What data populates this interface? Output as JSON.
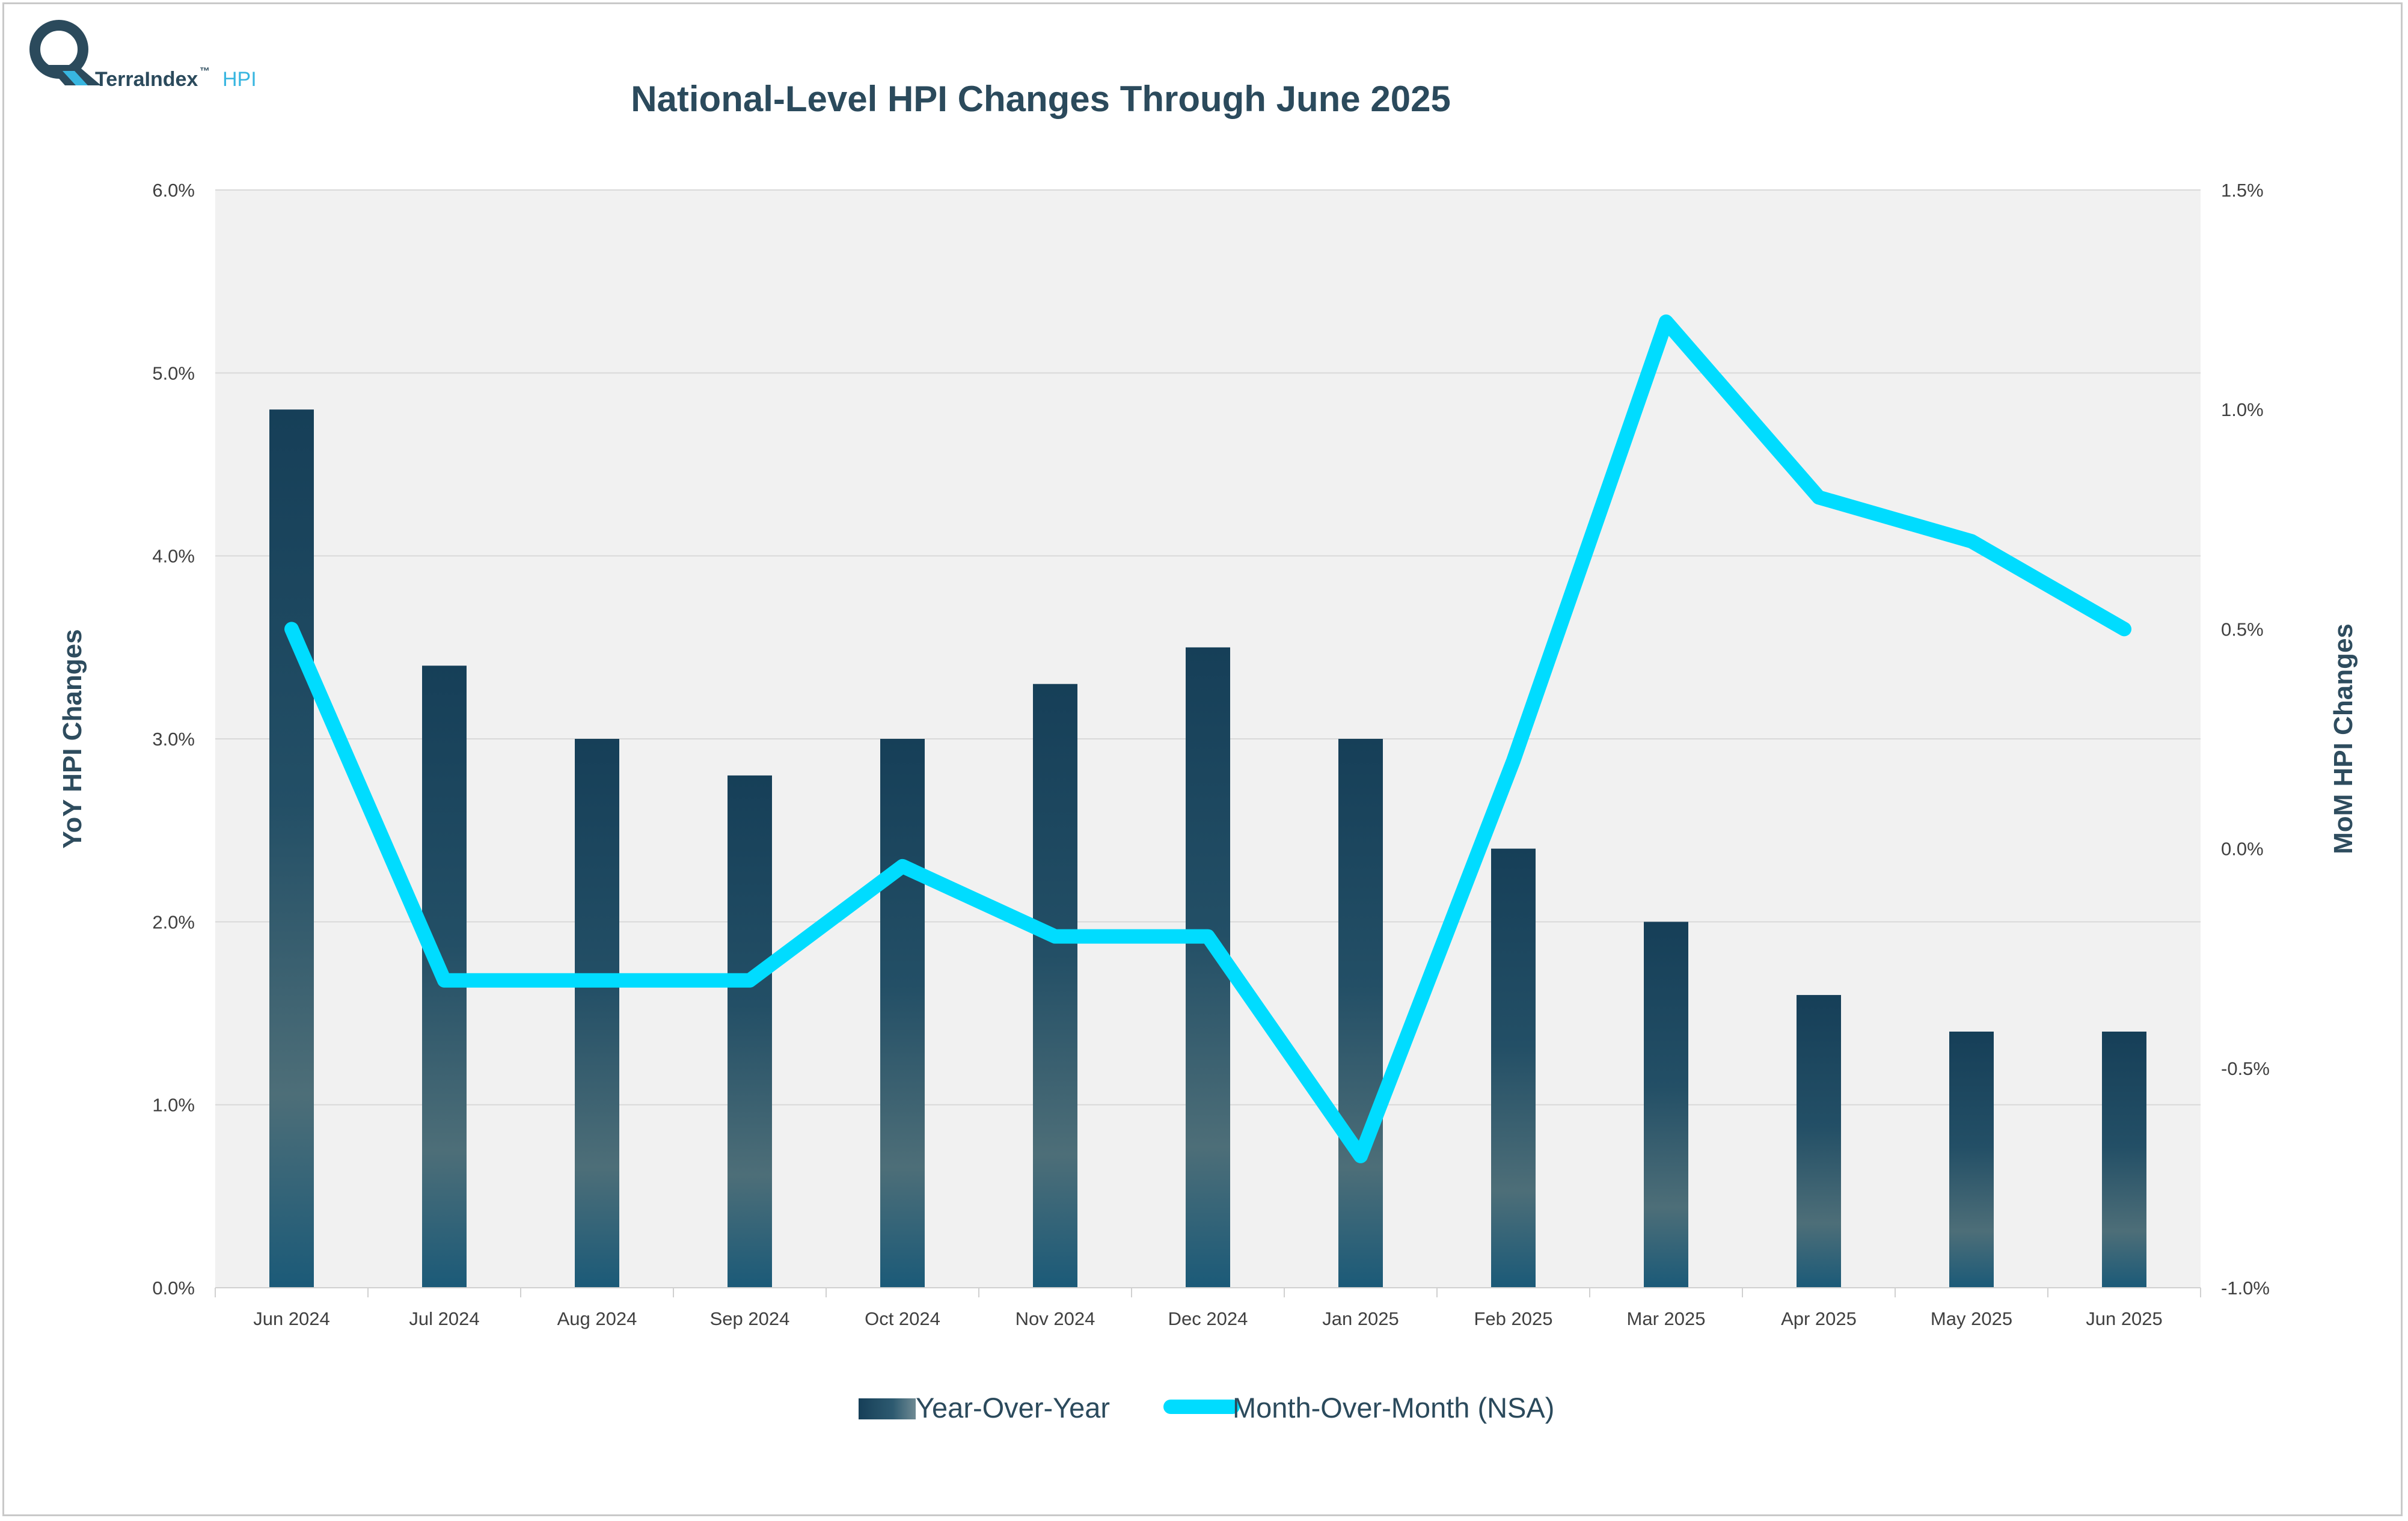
{
  "brand": {
    "name": "TerraIndex",
    "trademark": "™",
    "suffix": "HPI",
    "colors": {
      "dark": "#2b4a5c",
      "accent": "#38b6e0"
    }
  },
  "chart_data": {
    "type": "bar+line",
    "title": "National-Level HPI Changes Through June 2025",
    "categories": [
      "Jun 2024",
      "Jul 2024",
      "Aug 2024",
      "Sep 2024",
      "Oct 2024",
      "Nov 2024",
      "Dec 2024",
      "Jan 2025",
      "Feb 2025",
      "Mar 2025",
      "Apr 2025",
      "May 2025",
      "Jun 2025"
    ],
    "series": [
      {
        "name": "Year-Over-Year",
        "type": "bar",
        "axis": "left",
        "values": [
          4.8,
          3.4,
          3.0,
          2.8,
          3.0,
          3.3,
          3.5,
          3.0,
          2.4,
          2.0,
          1.6,
          1.4,
          1.4
        ],
        "color": "#16405a"
      },
      {
        "name": "Month-Over-Month (NSA)",
        "type": "line",
        "axis": "right",
        "values": [
          0.5,
          -0.3,
          -0.3,
          -0.3,
          -0.04,
          -0.2,
          -0.2,
          -0.7,
          0.2,
          1.2,
          0.8,
          0.7,
          0.5
        ],
        "color": "#00dcff"
      }
    ],
    "ylabel_left": "YoY HPI Changes",
    "ylabel_right": "MoM HPI Changes",
    "ylim_left": [
      0,
      6
    ],
    "ylim_right": [
      -1,
      1.5
    ],
    "yticks_left": [
      "0.0%",
      "1.0%",
      "2.0%",
      "3.0%",
      "4.0%",
      "5.0%",
      "6.0%"
    ],
    "yticks_right": [
      "-1.0%",
      "-0.5%",
      "0.0%",
      "0.5%",
      "1.0%",
      "1.5%"
    ],
    "grid": true,
    "legend": "bottom-center",
    "colors": {
      "plot_bg": "#f1f1f1",
      "grid": "#d9d9d9",
      "title": "#2b4a5c",
      "axis_title": "#2e4c5e",
      "tick": "#404040",
      "legend_text": "#2b4a5c"
    }
  }
}
